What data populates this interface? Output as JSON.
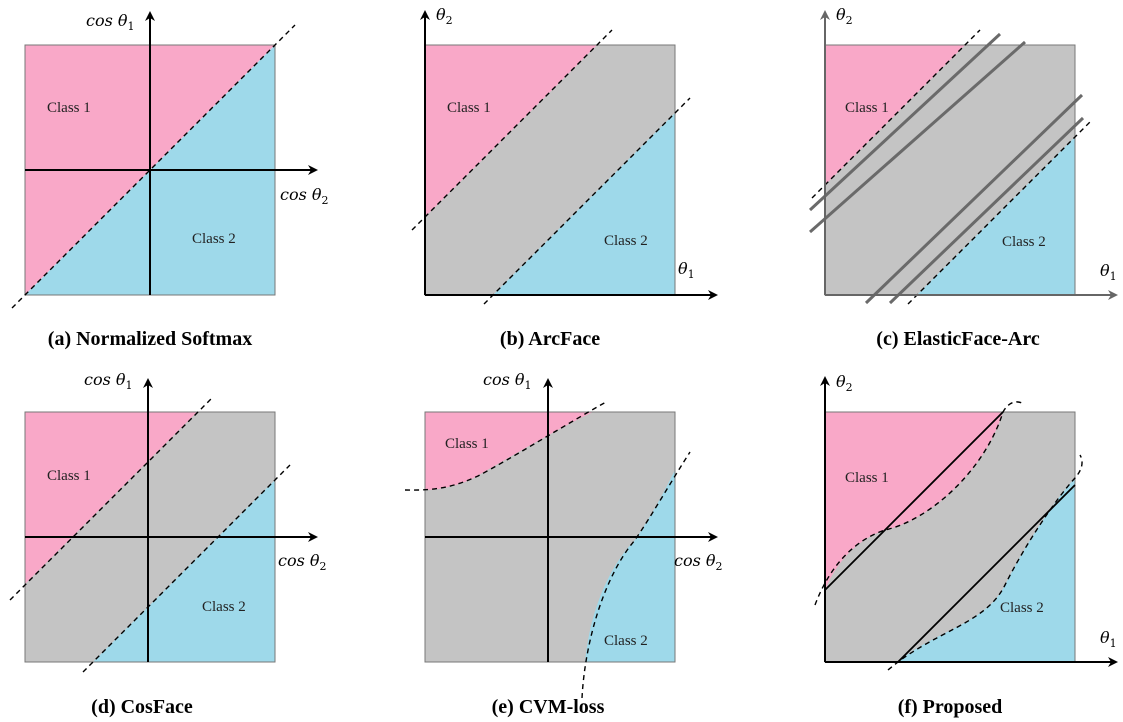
{
  "colors": {
    "class1": "#f9a8c8",
    "class2": "#9ed9ea",
    "margin": "#c4c4c4",
    "border": "#777777"
  },
  "panels": [
    {
      "caption": "(a) Normalized Softmax",
      "class1": "Class 1",
      "class2": "Class 2",
      "axis_x": "cos θ",
      "axis_x_sub": "2",
      "axis_y": "cos θ",
      "axis_y_sub": "1"
    },
    {
      "caption": "(b) ArcFace",
      "class1": "Class 1",
      "class2": "Class 2",
      "axis_x": "θ",
      "axis_x_sub": "1",
      "axis_y": "θ",
      "axis_y_sub": "2"
    },
    {
      "caption": "(c) ElasticFace-Arc",
      "class1": "Class 1",
      "class2": "Class 2",
      "axis_x": "θ",
      "axis_x_sub": "1",
      "axis_y": "θ",
      "axis_y_sub": "2"
    },
    {
      "caption": "(d) CosFace",
      "class1": "Class 1",
      "class2": "Class 2",
      "axis_x": "cos θ",
      "axis_x_sub": "2",
      "axis_y": "cos θ",
      "axis_y_sub": "1"
    },
    {
      "caption": "(e) CVM-loss",
      "class1": "Class 1",
      "class2": "Class 2",
      "axis_x": "cos θ",
      "axis_x_sub": "2",
      "axis_y": "cos θ",
      "axis_y_sub": "1"
    },
    {
      "caption": "(f) Proposed",
      "class1": "Class 1",
      "class2": "Class 2",
      "axis_x": "θ",
      "axis_x_sub": "1",
      "axis_y": "θ",
      "axis_y_sub": "2"
    }
  ]
}
